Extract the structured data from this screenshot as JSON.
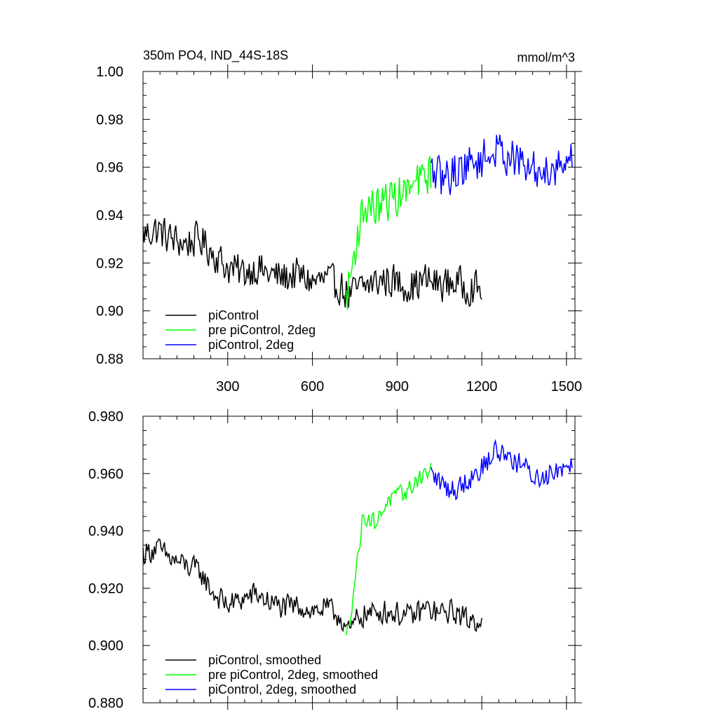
{
  "figure": {
    "title_left": "350m PO4, IND_44S-18S",
    "title_right": "mmol/m^3"
  },
  "chart_data": [
    {
      "type": "line",
      "title": "350m PO4, IND_44S-18S",
      "units": "mmol/m^3",
      "xlim": [
        0,
        1530
      ],
      "ylim": [
        0.88,
        1.0
      ],
      "x_ticks": [
        300,
        600,
        900,
        1200,
        1500
      ],
      "y_ticks": [
        0.88,
        0.9,
        0.92,
        0.94,
        0.96,
        0.98,
        1.0
      ],
      "y_tick_labels": [
        "0.88",
        "0.90",
        "0.92",
        "0.94",
        "0.96",
        "0.98",
        "1.00"
      ],
      "legend_position": "bottom-left",
      "series": [
        {
          "name": "piControl",
          "color": "#000000",
          "x": [
            0,
            50,
            100,
            150,
            200,
            250,
            300,
            350,
            400,
            450,
            500,
            550,
            600,
            650,
            700,
            730,
            760,
            800,
            850,
            900,
            950,
            1000,
            1050,
            1100,
            1150,
            1200
          ],
          "y": [
            0.932,
            0.934,
            0.93,
            0.928,
            0.93,
            0.924,
            0.918,
            0.916,
            0.918,
            0.915,
            0.914,
            0.915,
            0.912,
            0.913,
            0.91,
            0.906,
            0.909,
            0.911,
            0.913,
            0.912,
            0.91,
            0.913,
            0.911,
            0.912,
            0.91,
            0.909
          ],
          "noise": 0.007
        },
        {
          "name": "pre piControl, 2deg",
          "color": "#00ff00",
          "x": [
            720,
            740,
            760,
            780,
            800,
            830,
            860,
            900,
            940,
            980,
            1020
          ],
          "y": [
            0.905,
            0.918,
            0.932,
            0.942,
            0.944,
            0.943,
            0.946,
            0.948,
            0.95,
            0.954,
            0.958
          ],
          "noise": 0.008
        },
        {
          "name": "piControl, 2deg",
          "color": "#0000ff",
          "x": [
            1020,
            1060,
            1100,
            1150,
            1200,
            1250,
            1300,
            1350,
            1400,
            1450,
            1500,
            1520
          ],
          "y": [
            0.958,
            0.955,
            0.958,
            0.961,
            0.963,
            0.967,
            0.965,
            0.96,
            0.958,
            0.96,
            0.963,
            0.963
          ],
          "noise": 0.008
        }
      ]
    },
    {
      "type": "line",
      "xlim": [
        0,
        1530
      ],
      "ylim": [
        0.88,
        0.98
      ],
      "x_ticks": [
        300,
        600,
        900,
        1200,
        1500
      ],
      "y_ticks": [
        0.88,
        0.9,
        0.92,
        0.94,
        0.96,
        0.98
      ],
      "y_tick_labels": [
        "0.880",
        "0.900",
        "0.920",
        "0.940",
        "0.960",
        "0.980"
      ],
      "legend_position": "bottom-left",
      "series": [
        {
          "name": "piControl, smoothed",
          "color": "#000000",
          "x": [
            0,
            50,
            100,
            150,
            200,
            250,
            300,
            350,
            400,
            450,
            500,
            550,
            600,
            650,
            700,
            730,
            760,
            800,
            850,
            900,
            950,
            1000,
            1050,
            1100,
            1150,
            1200
          ],
          "y": [
            0.932,
            0.934,
            0.93,
            0.928,
            0.926,
            0.918,
            0.914,
            0.916,
            0.918,
            0.915,
            0.913,
            0.914,
            0.912,
            0.913,
            0.91,
            0.904,
            0.91,
            0.911,
            0.912,
            0.911,
            0.91,
            0.913,
            0.911,
            0.912,
            0.909,
            0.909
          ],
          "noise": 0.004
        },
        {
          "name": "pre piControl, 2deg, smoothed",
          "color": "#00ff00",
          "x": [
            720,
            740,
            760,
            780,
            800,
            830,
            860,
            900,
            940,
            980,
            1020
          ],
          "y": [
            0.902,
            0.915,
            0.93,
            0.946,
            0.944,
            0.943,
            0.95,
            0.952,
            0.954,
            0.959,
            0.961
          ],
          "noise": 0.003
        },
        {
          "name": "piControl, 2deg, smoothed",
          "color": "#0000ff",
          "x": [
            1020,
            1060,
            1100,
            1150,
            1200,
            1250,
            1300,
            1350,
            1400,
            1450,
            1500,
            1520
          ],
          "y": [
            0.96,
            0.956,
            0.954,
            0.958,
            0.962,
            0.968,
            0.966,
            0.962,
            0.958,
            0.961,
            0.963,
            0.965
          ],
          "noise": 0.004
        }
      ]
    }
  ]
}
